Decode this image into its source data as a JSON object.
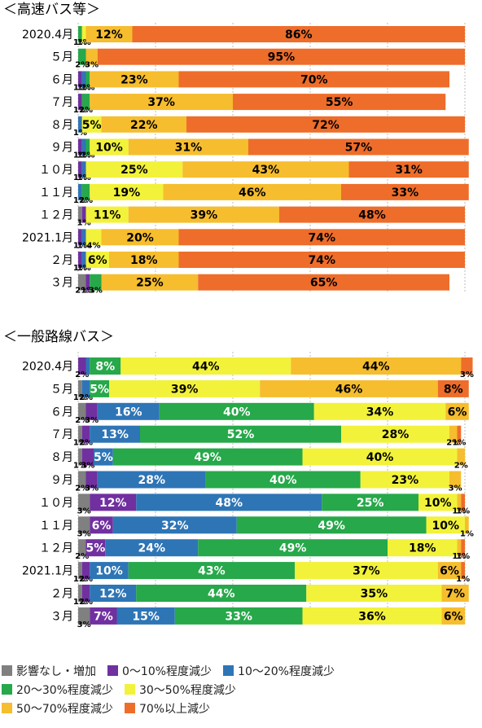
{
  "legend_order": [
    "影響なし・増加",
    "0～10%程度減少",
    "10～20%程度減少",
    "20～30%程度減少",
    "30～50%程度減少",
    "50～70%程度減少",
    "70%以上減少"
  ],
  "colors": {
    "影響なし・増加": "#808080",
    "0～10%程度減少": "#7030a0",
    "10～20%程度減少": "#2e75b6",
    "20～30%程度減少": "#27a84a",
    "30～50%程度減少": "#f2f23a",
    "50～70%程度減少": "#f6bd2e",
    "70%以上減少": "#ee6d2a"
  },
  "chart_data": [
    {
      "type": "bar",
      "orientation": "horizontal",
      "stacked": true,
      "title": "＜高速バス等＞",
      "xlim": [
        0,
        100
      ],
      "grid": true,
      "legend_placement": "bottom",
      "categories": [
        "2020.4月",
        "５月",
        "６月",
        "７月",
        "８月",
        "９月",
        "１０月",
        "１１月",
        "１２月",
        "2021.1月",
        "２月",
        "３月"
      ],
      "series": [
        {
          "name": "影響なし・増加",
          "values": [
            0,
            0,
            0,
            0,
            0,
            0,
            0,
            0,
            1,
            0,
            0,
            2
          ],
          "labels": [
            "",
            "",
            "",
            "",
            "",
            "",
            "",
            "",
            "",
            "",
            "",
            "2%"
          ]
        },
        {
          "name": "0～10%程度減少",
          "values": [
            0,
            0,
            1,
            1,
            0,
            1,
            1,
            0,
            1,
            1,
            1,
            1
          ],
          "labels": [
            "",
            "",
            "1%",
            "1%",
            "",
            "1%",
            "1%",
            "",
            "1%",
            "1%",
            "1%",
            "1%"
          ]
        },
        {
          "name": "10～20%程度減少",
          "values": [
            0,
            0,
            1,
            0,
            1,
            1,
            1,
            1,
            0,
            1,
            1,
            0
          ],
          "labels": [
            "",
            "",
            "1%",
            "",
            "1%",
            "1%",
            "1%",
            "1%",
            "",
            "1%",
            "1%",
            ""
          ]
        },
        {
          "name": "20～30%程度減少",
          "values": [
            1,
            2,
            1,
            2,
            0,
            1,
            0,
            2,
            0,
            0,
            0,
            3
          ],
          "labels": [
            "1%",
            "2%",
            "1%",
            "2%",
            "",
            "1%",
            "",
            "2%",
            "",
            "",
            "",
            "3%"
          ]
        },
        {
          "name": "30～50%程度減少",
          "values": [
            1,
            0,
            0,
            0,
            5,
            10,
            25,
            19,
            11,
            4,
            6,
            0
          ],
          "labels": [
            "1%",
            "",
            "",
            "",
            "5%",
            "10%",
            "25%",
            "19%",
            "11%",
            "4%",
            "6%",
            ""
          ]
        },
        {
          "name": "50～70%程度減少",
          "values": [
            12,
            3,
            23,
            37,
            22,
            31,
            43,
            46,
            39,
            20,
            18,
            25
          ],
          "labels": [
            "12%",
            "3%",
            "23%",
            "37%",
            "22%",
            "31%",
            "43%",
            "46%",
            "39%",
            "20%",
            "18%",
            "25%"
          ]
        },
        {
          "name": "70%以上減少",
          "values": [
            86,
            95,
            70,
            55,
            72,
            57,
            31,
            33,
            48,
            74,
            74,
            65
          ],
          "labels": [
            "86%",
            "95%",
            "70%",
            "55%",
            "72%",
            "57%",
            "31%",
            "33%",
            "48%",
            "74%",
            "74%",
            "65%"
          ]
        }
      ]
    },
    {
      "type": "bar",
      "orientation": "horizontal",
      "stacked": true,
      "title": "＜一般路線バス＞",
      "xlim": [
        0,
        100
      ],
      "grid": true,
      "legend_placement": "bottom",
      "categories": [
        "2020.4月",
        "５月",
        "６月",
        "７月",
        "８月",
        "９月",
        "１０月",
        "１１月",
        "１２月",
        "2021.1月",
        "２月",
        "３月"
      ],
      "series": [
        {
          "name": "影響なし・増加",
          "values": [
            0,
            1,
            2,
            1,
            1,
            2,
            3,
            3,
            2,
            1,
            1,
            3
          ],
          "labels": [
            "",
            "1%",
            "2%",
            "1%",
            "1%",
            "2%",
            "3%",
            "3%",
            "2%",
            "1%",
            "1%",
            "3%"
          ]
        },
        {
          "name": "0～10%程度減少",
          "values": [
            2,
            0,
            3,
            2,
            3,
            3,
            12,
            6,
            5,
            2,
            2,
            7
          ],
          "labels": [
            "2%",
            "",
            "3%",
            "2%",
            "3%",
            "3%",
            "12%",
            "6%",
            "5%",
            "2%",
            "2%",
            "7%"
          ]
        },
        {
          "name": "10～20%程度減少",
          "values": [
            1,
            2,
            16,
            13,
            5,
            28,
            48,
            32,
            24,
            10,
            12,
            15
          ],
          "labels": [
            "",
            "2%",
            "16%",
            "13%",
            "5%",
            "28%",
            "48%",
            "32%",
            "24%",
            "10%",
            "12%",
            "15%"
          ]
        },
        {
          "name": "20～30%程度減少",
          "values": [
            8,
            5,
            40,
            52,
            49,
            40,
            25,
            49,
            49,
            43,
            44,
            33
          ],
          "labels": [
            "8%",
            "5%",
            "40%",
            "52%",
            "49%",
            "40%",
            "25%",
            "49%",
            "49%",
            "43%",
            "44%",
            "33%"
          ]
        },
        {
          "name": "30～50%程度減少",
          "values": [
            44,
            39,
            34,
            28,
            40,
            23,
            10,
            10,
            18,
            37,
            35,
            36
          ],
          "labels": [
            "44%",
            "39%",
            "34%",
            "28%",
            "40%",
            "23%",
            "10%",
            "10%",
            "18%",
            "37%",
            "35%",
            "36%"
          ]
        },
        {
          "name": "50～70%程度減少",
          "values": [
            44,
            46,
            6,
            2,
            2,
            3,
            1,
            1,
            1,
            6,
            7,
            6
          ],
          "labels": [
            "44%",
            "46%",
            "6%",
            "2%",
            "2%",
            "3%",
            "1%",
            "1%",
            "1%",
            "6%",
            "7%",
            "6%"
          ]
        },
        {
          "name": "70%以上減少",
          "values": [
            3,
            8,
            0,
            1,
            0,
            0,
            1,
            0,
            1,
            1,
            0,
            0
          ],
          "labels": [
            "3%",
            "8%",
            "",
            "1%",
            "",
            "",
            "1%",
            "",
            "1%",
            "1%",
            "",
            ""
          ]
        }
      ]
    }
  ]
}
